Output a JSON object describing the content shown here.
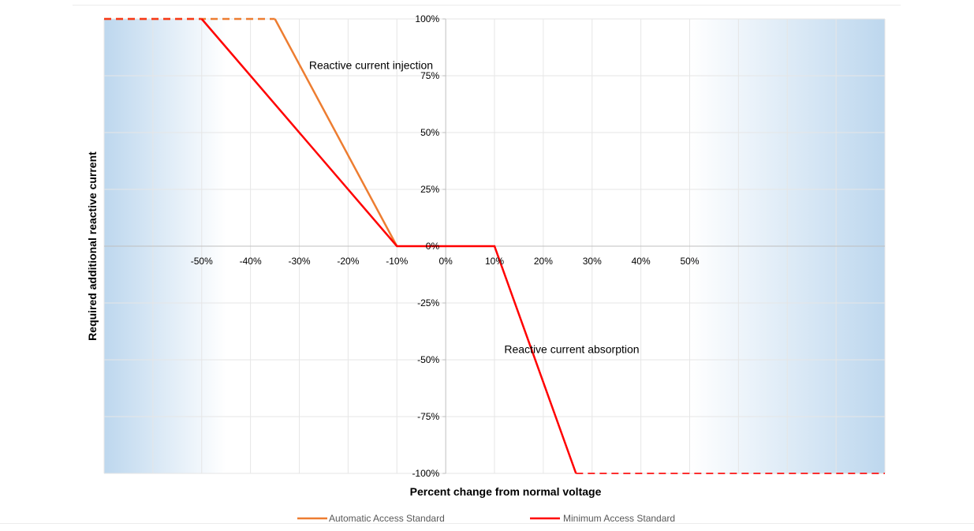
{
  "chart_data": {
    "type": "line",
    "title": "",
    "xlabel": "Percent change from normal voltage",
    "ylabel": "Required additional reactive current",
    "x_ticks": [
      "-50%",
      "-40%",
      "-30%",
      "-20%",
      "-10%",
      "0%",
      "10%",
      "20%",
      "30%",
      "40%",
      "50%"
    ],
    "x_tick_values": [
      -50,
      -40,
      -30,
      -20,
      -10,
      0,
      10,
      20,
      30,
      40,
      50
    ],
    "y_ticks": [
      "100%",
      "75%",
      "50%",
      "25%",
      "0%",
      "-25%",
      "-50%",
      "-75%",
      "-100%"
    ],
    "y_tick_values": [
      100,
      75,
      50,
      25,
      0,
      -25,
      -50,
      -75,
      -100
    ],
    "xlim": [
      -70,
      90
    ],
    "ylim": [
      -100,
      100
    ],
    "grid": true,
    "legend_position": "bottom",
    "annotations": [
      {
        "text": "Reactive current injection",
        "x": -28,
        "y": 78
      },
      {
        "text": "Reactive current absorption",
        "x": 12,
        "y": -47
      }
    ],
    "series": [
      {
        "name": "Automatic Access Standard",
        "color": "#ED7D31",
        "solid": [
          [
            -35,
            100
          ],
          [
            -10,
            0
          ]
        ],
        "dashed": [
          [
            -70,
            100
          ],
          [
            -35,
            100
          ]
        ]
      },
      {
        "name": "Minimum Access Standard",
        "color": "#FF0000",
        "solid": [
          [
            -50,
            100
          ],
          [
            -10,
            0
          ],
          [
            10,
            0
          ],
          [
            26.7,
            -100
          ]
        ],
        "dashed_left": [
          [
            -70,
            100
          ],
          [
            -50,
            100
          ]
        ],
        "dashed_right": [
          [
            26.7,
            -100
          ],
          [
            90,
            -100
          ]
        ]
      }
    ],
    "shaded_regions": [
      {
        "x_from": -70,
        "x_to": -45,
        "color": "#BDD7EE"
      },
      {
        "x_from": 50,
        "x_to": 90,
        "color": "#BDD7EE"
      }
    ]
  }
}
